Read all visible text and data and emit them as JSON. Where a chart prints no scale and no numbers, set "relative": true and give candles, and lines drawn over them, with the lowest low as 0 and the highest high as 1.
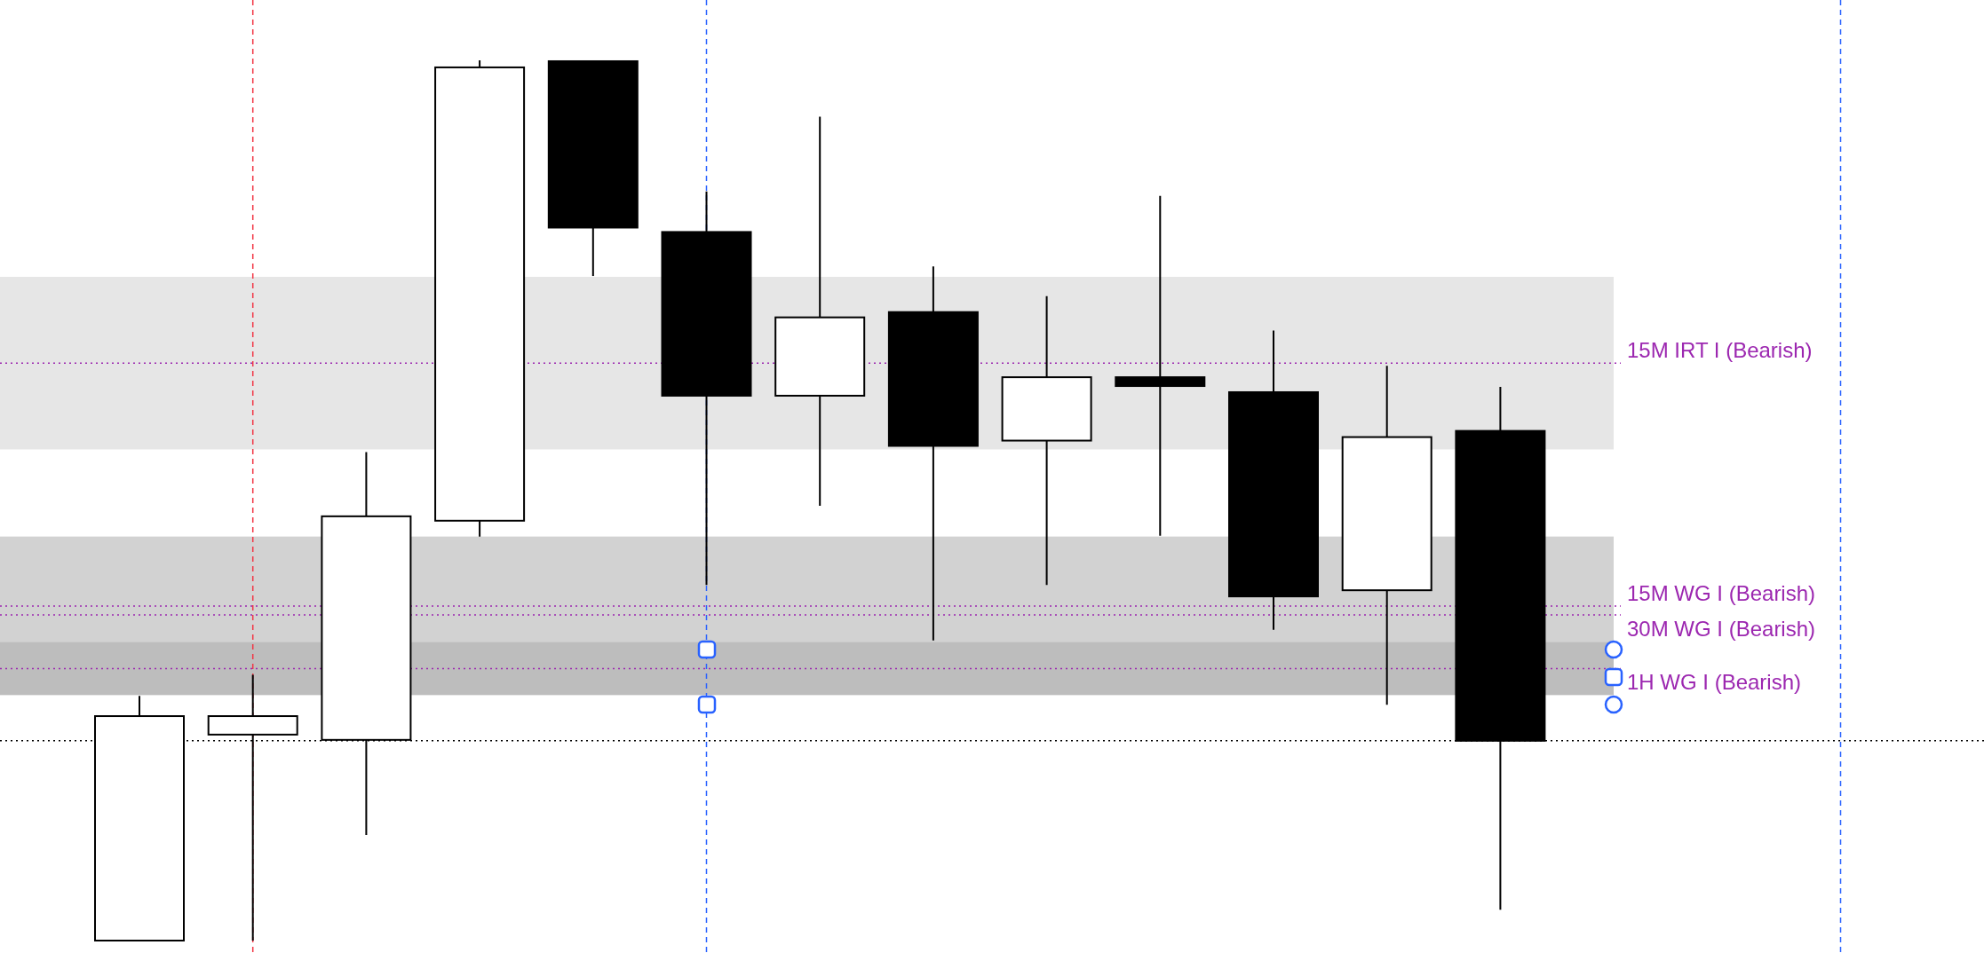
{
  "chart_data": {
    "type": "candlestick",
    "relative": true,
    "categories": [
      null,
      null,
      null,
      null,
      null,
      null,
      null,
      null,
      null,
      null,
      null,
      null,
      null
    ],
    "ohlc": [
      [
        0,
        0.278,
        0,
        0.255
      ],
      [
        0.234,
        0.302,
        0,
        0.255
      ],
      [
        0.228,
        0.555,
        0.12,
        0.482
      ],
      [
        0.477,
        1,
        0.459,
        0.992
      ],
      [
        0.999,
        1,
        0.755,
        0.81
      ],
      [
        0.805,
        0.851,
        0.404,
        0.619
      ],
      [
        0.619,
        0.936,
        0.494,
        0.708
      ],
      [
        0.714,
        0.766,
        0.341,
        0.562
      ],
      [
        0.568,
        0.732,
        0.404,
        0.64
      ],
      [
        0.64,
        0.846,
        0.46,
        0.63
      ],
      [
        0.623,
        0.693,
        0.353,
        0.391
      ],
      [
        0.398,
        0.653,
        0.268,
        0.572
      ],
      [
        0.579,
        0.629,
        0.035,
        0.227
      ]
    ],
    "bands": [
      {
        "axis": "y",
        "from": 0.558,
        "to": 0.754,
        "color": "#e6e6e6"
      },
      {
        "axis": "y",
        "from": 0.279,
        "to": 0.459,
        "color": "#d2d2d2"
      },
      {
        "axis": "y",
        "from": 0.279,
        "to": 0.339,
        "color": "#bdbdbd"
      }
    ],
    "ref_lines": [
      {
        "axis": "y",
        "value": 0.656,
        "label": "15M IRT I (Bearish)",
        "color": "#9c27b0",
        "line_style": "dotted"
      },
      {
        "axis": "y",
        "value": 0.38,
        "label": "15M WG I (Bearish)",
        "color": "#9c27b0",
        "line_style": "dotted"
      },
      {
        "axis": "y",
        "value": 0.37,
        "label": "30M WG I (Bearish)",
        "color": "#9c27b0",
        "line_style": "dotted"
      },
      {
        "axis": "y",
        "value": 0.309,
        "label": "1H WG I (Bearish)",
        "color": "#9c27b0",
        "line_style": "dotted"
      },
      {
        "axis": "y",
        "value": 0.227,
        "color": "#000000",
        "line_style": "dotted"
      }
    ]
  }
}
